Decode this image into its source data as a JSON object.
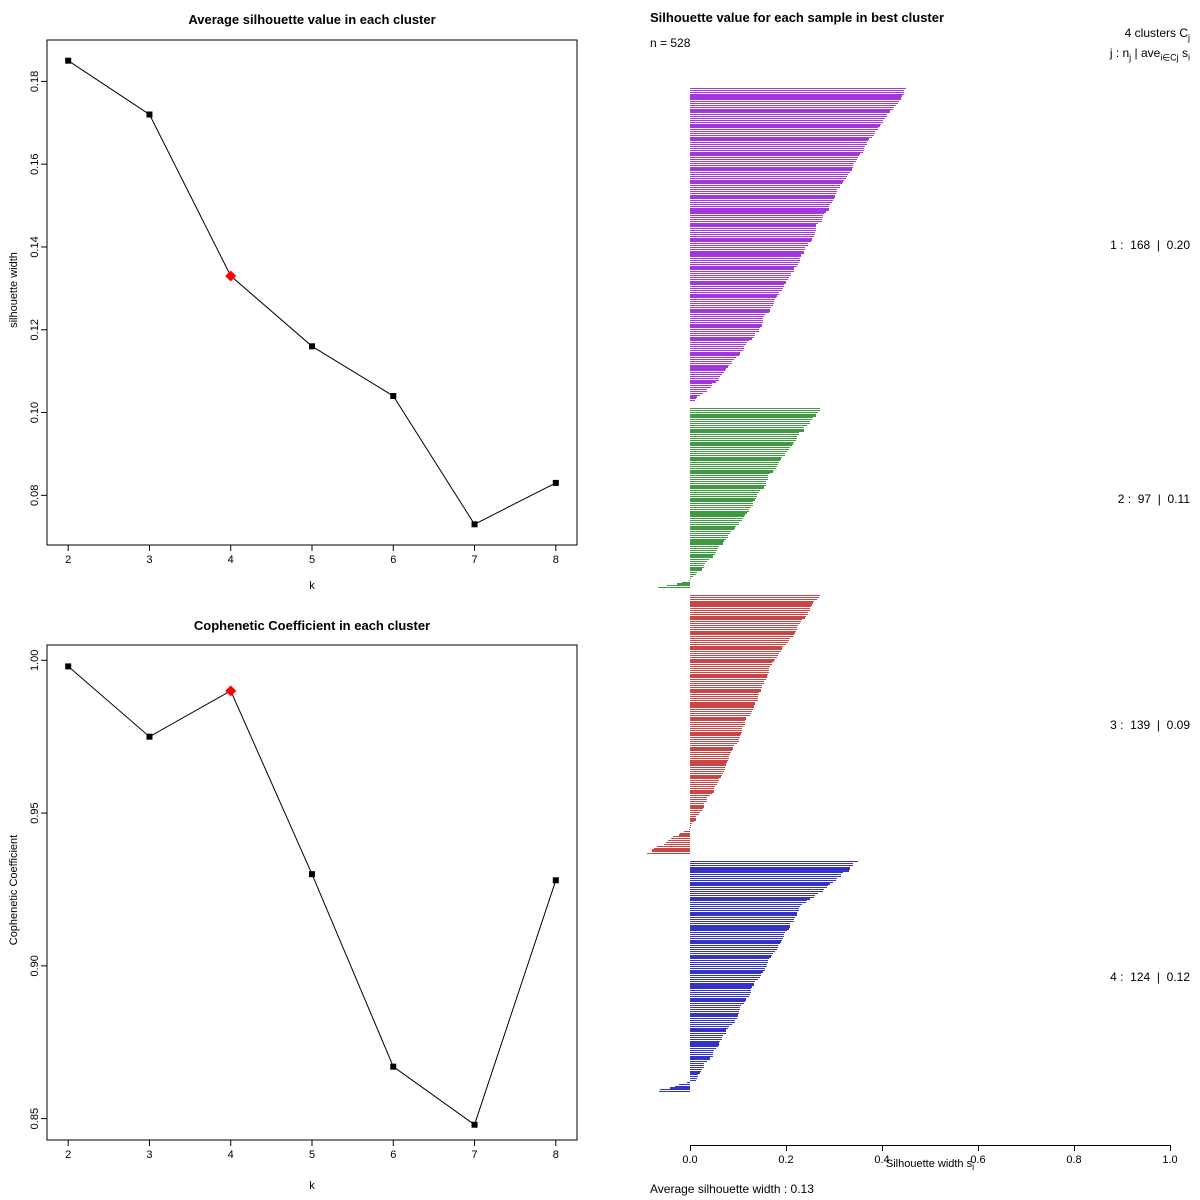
{
  "colors": {
    "highlight": "#ff0000",
    "axis": "#000000",
    "line": "#000000"
  },
  "chart_data": [
    {
      "id": "silhouette_k",
      "type": "line",
      "title": "Average silhouette value in each cluster",
      "xlabel": "k",
      "ylabel": "silhouette width",
      "x": [
        2,
        3,
        4,
        5,
        6,
        7,
        8
      ],
      "values": [
        0.185,
        0.172,
        0.133,
        0.116,
        0.104,
        0.073,
        0.083
      ],
      "highlight_x": 4,
      "highlight_value": 0.133,
      "xticks": [
        2,
        3,
        4,
        5,
        6,
        7,
        8
      ],
      "yticks": [
        0.08,
        0.1,
        0.12,
        0.14,
        0.16,
        0.18
      ],
      "ylim": [
        0.068,
        0.19
      ],
      "grid": false,
      "legend_position": "none"
    },
    {
      "id": "cophenetic_k",
      "type": "line",
      "title": "Cophenetic Coefficient in each cluster",
      "xlabel": "k",
      "ylabel": "Cophenetic Coefficient",
      "x": [
        2,
        3,
        4,
        5,
        6,
        7,
        8
      ],
      "values": [
        0.998,
        0.975,
        0.99,
        0.93,
        0.867,
        0.848,
        0.928
      ],
      "highlight_x": 4,
      "highlight_value": 0.99,
      "xticks": [
        2,
        3,
        4,
        5,
        6,
        7,
        8
      ],
      "yticks": [
        0.85,
        0.9,
        0.95,
        1.0
      ],
      "ylim": [
        0.843,
        1.005
      ],
      "grid": false,
      "legend_position": "none"
    },
    {
      "id": "silhouette_samples",
      "type": "bar",
      "title": "Silhouette value for each sample in best cluster",
      "n_label": "n = 528",
      "n": 528,
      "legend": {
        "line1": {
          "p1": "4  clusters  C",
          "s1": "j"
        },
        "line2": {
          "p1": "j :  n",
          "s1": "j",
          "p2": " | ave",
          "s2": "i∈Cj",
          "p3": " s",
          "s3": "i"
        }
      },
      "xlabel": {
        "p1": "Silhouette width s",
        "s1": "i"
      },
      "xticks": [
        0.0,
        0.2,
        0.4,
        0.6,
        0.8,
        1.0
      ],
      "xlim": [
        -0.12,
        1.0
      ],
      "avg_label": "Average silhouette width :  0.13",
      "average_silhouette_width": 0.13,
      "clusters": [
        {
          "j": 1,
          "n": 168,
          "avg": 0.2,
          "color": "#a435e0",
          "label": "1 :  168  |  0.20",
          "profile_t": [
            0,
            0.2,
            0.4,
            0.6,
            0.8,
            0.95,
            1
          ],
          "profile_v": [
            0.45,
            0.36,
            0.28,
            0.21,
            0.13,
            0.05,
            0.01
          ]
        },
        {
          "j": 2,
          "n": 97,
          "avg": 0.11,
          "color": "#3f9b3f",
          "label": "2 :  97  |  0.11",
          "profile_t": [
            0,
            0.3,
            0.6,
            0.85,
            0.96,
            1
          ],
          "profile_v": [
            0.27,
            0.185,
            0.115,
            0.04,
            0.0,
            -0.06
          ]
        },
        {
          "j": 3,
          "n": 139,
          "avg": 0.09,
          "color": "#cc4444",
          "label": "3 :  139  |  0.09",
          "profile_t": [
            0,
            0.25,
            0.5,
            0.75,
            0.9,
            1
          ],
          "profile_v": [
            0.27,
            0.175,
            0.115,
            0.05,
            0.0,
            -0.09
          ]
        },
        {
          "j": 4,
          "n": 124,
          "avg": 0.12,
          "color": "#3333cc",
          "label": "4 :  124  |  0.12",
          "profile_t": [
            0,
            0.2,
            0.5,
            0.8,
            0.95,
            1
          ],
          "profile_v": [
            0.35,
            0.23,
            0.145,
            0.06,
            0.01,
            -0.07
          ]
        }
      ]
    }
  ]
}
